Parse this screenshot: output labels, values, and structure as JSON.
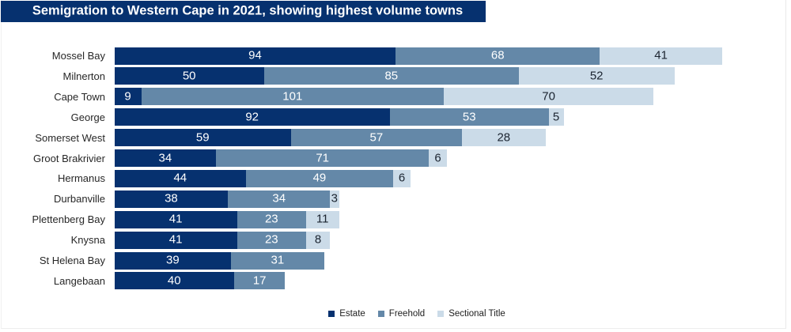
{
  "title": "Semigration to Western Cape in 2021, showing highest volume towns",
  "colors": {
    "title_bar_bg": "#06316F",
    "title_text": "#FFFFFF",
    "estate": "#06316F",
    "freehold": "#6488A8",
    "sectional_title": "#CBDBE8",
    "value_on_dark": "#FFFFFF",
    "value_on_light": "#1B2430",
    "category_text": "#272727"
  },
  "legend": {
    "items": [
      {
        "label": "Estate",
        "color": "#06316F"
      },
      {
        "label": "Freehold",
        "color": "#6488A8"
      },
      {
        "label": "Sectional Title",
        "color": "#CBDBE8"
      }
    ]
  },
  "chart_data": {
    "type": "bar",
    "orientation": "horizontal",
    "stacked": true,
    "title": "Semigration to Western Cape in 2021, showing highest volume towns",
    "xlabel": "",
    "ylabel": "",
    "xlim": [
      0,
      210
    ],
    "grid": false,
    "legend_position": "bottom-center",
    "categories": [
      "Mossel Bay",
      "Milnerton",
      "Cape Town",
      "George",
      "Somerset West",
      "Groot Brakrivier",
      "Hermanus",
      "Durbanville",
      "Plettenberg Bay",
      "Knysna",
      "St Helena Bay",
      "Langebaan"
    ],
    "series": [
      {
        "name": "Estate",
        "color": "#06316F",
        "label_color": "#FFFFFF",
        "values": [
          94,
          50,
          9,
          92,
          59,
          34,
          44,
          38,
          41,
          41,
          39,
          40
        ]
      },
      {
        "name": "Freehold",
        "color": "#6488A8",
        "label_color": "#FFFFFF",
        "values": [
          68,
          85,
          101,
          53,
          57,
          71,
          49,
          34,
          23,
          23,
          31,
          17
        ]
      },
      {
        "name": "Sectional Title",
        "color": "#CBDBE8",
        "label_color": "#1B2430",
        "values": [
          41,
          52,
          70,
          5,
          28,
          6,
          6,
          3,
          11,
          8,
          null,
          null
        ]
      }
    ]
  }
}
